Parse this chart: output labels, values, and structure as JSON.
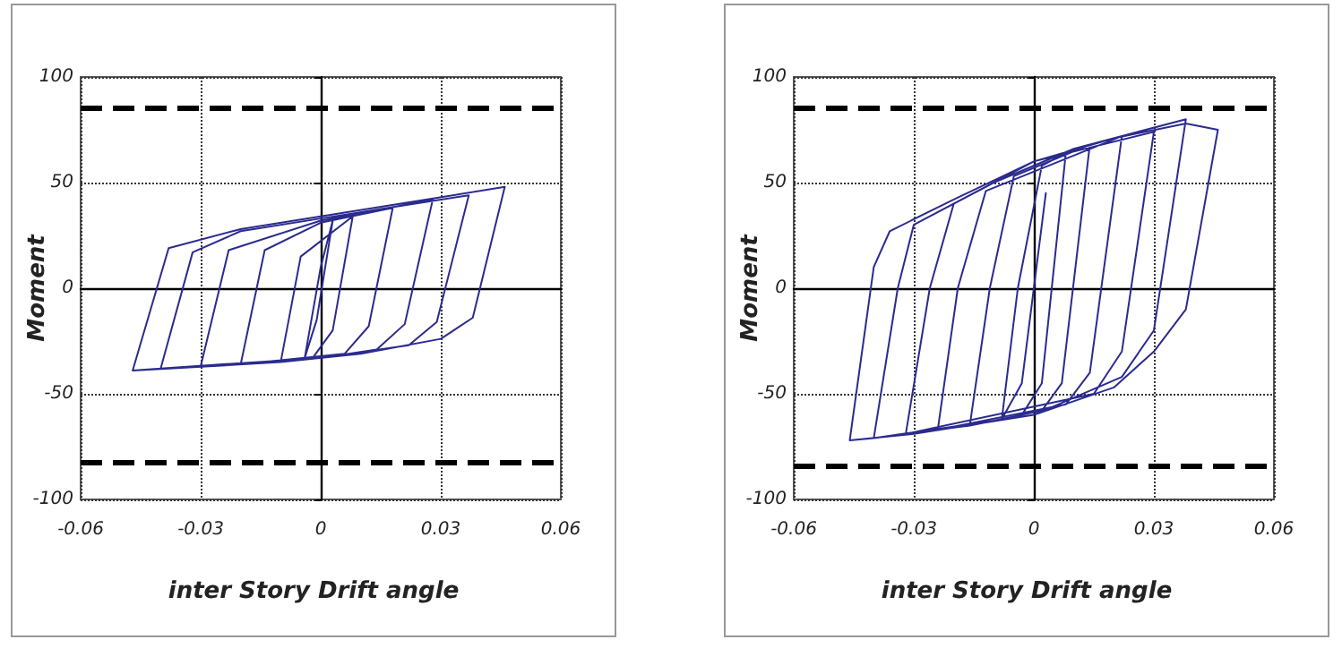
{
  "chart_data": [
    {
      "type": "line",
      "xlabel": "inter Story Drift angle",
      "ylabel": "Moment",
      "xlim": [
        -0.06,
        0.06
      ],
      "ylim": [
        -100,
        100
      ],
      "xticks": [
        -0.06,
        -0.03,
        0,
        0.03,
        0.06
      ],
      "yticks": [
        -100,
        -50,
        0,
        50,
        100
      ],
      "grid": true,
      "marker": "none",
      "line_style": "solid",
      "ref_lines": [
        {
          "axis": "y",
          "value": 85,
          "color": "#000000",
          "line_style": "dashed"
        },
        {
          "axis": "y",
          "value": -82,
          "color": "#000000",
          "line_style": "dashed"
        }
      ],
      "series": [
        {
          "color": "#2b2b8f",
          "x": [
            -0.004,
            0.0,
            0.003,
            -0.001,
            -0.004,
            -0.01,
            -0.005,
            0.008,
            0.003,
            -0.002,
            -0.01,
            -0.02,
            -0.014,
            0.0,
            0.018,
            0.012,
            0.006,
            -0.02,
            -0.03,
            -0.023,
            0.0,
            0.028,
            0.021,
            0.014,
            0.0,
            -0.03,
            -0.04,
            -0.032,
            -0.02,
            0.0,
            0.02,
            0.037,
            0.029,
            0.022,
            0.0,
            -0.04,
            -0.047,
            -0.038,
            -0.02,
            0.0,
            0.02,
            0.046,
            0.038,
            0.03,
            0.01,
            -0.01,
            -0.047
          ],
          "values": [
            -33,
            10,
            32,
            -15,
            -33,
            -35,
            15,
            34,
            -20,
            -33,
            -35,
            -36,
            18,
            31,
            38,
            -18,
            -31,
            -36,
            -37,
            18,
            32,
            42,
            -17,
            -29,
            -33,
            -37,
            -38,
            17,
            27,
            33,
            39,
            44,
            -16,
            -27,
            -33,
            -38,
            -39,
            19,
            28,
            34,
            40,
            48,
            -14,
            -24,
            -31,
            -35,
            -39
          ]
        }
      ]
    },
    {
      "type": "line",
      "xlabel": "inter Story Drift angle",
      "ylabel": "Moment",
      "xlim": [
        -0.06,
        0.06
      ],
      "ylim": [
        -100,
        100
      ],
      "xticks": [
        -0.06,
        -0.03,
        0,
        0.03,
        0.06
      ],
      "yticks": [
        -100,
        -50,
        0,
        50,
        100
      ],
      "grid": true,
      "marker": "none",
      "line_style": "solid",
      "ref_lines": [
        {
          "axis": "y",
          "value": 85,
          "color": "#000000",
          "line_style": "dashed"
        },
        {
          "axis": "y",
          "value": -84,
          "color": "#000000",
          "line_style": "dashed"
        }
      ],
      "series": [
        {
          "color": "#2b2b8f",
          "x": [
            -0.003,
            0.003,
            -0.003,
            -0.008,
            -0.004,
            0.002,
            0.008,
            0.002,
            -0.003,
            -0.008,
            -0.016,
            -0.011,
            -0.005,
            0.014,
            0.007,
            0.002,
            -0.016,
            -0.024,
            -0.019,
            -0.012,
            0.022,
            0.014,
            0.008,
            -0.024,
            -0.032,
            -0.026,
            -0.02,
            0.0,
            0.03,
            0.022,
            0.015,
            -0.032,
            -0.04,
            -0.034,
            -0.03,
            -0.01,
            0.01,
            0.038,
            0.03,
            0.022,
            0.0,
            -0.04,
            -0.046,
            -0.04,
            -0.036,
            -0.02,
            0.0,
            0.02,
            0.038,
            0.046,
            0.038,
            0.03,
            0.02,
            0.0,
            -0.03,
            -0.046
          ],
          "values": [
            -45,
            45,
            -45,
            -62,
            0,
            58,
            64,
            -45,
            -60,
            -62,
            -65,
            0,
            53,
            68,
            -45,
            -58,
            -65,
            -67,
            0,
            46,
            72,
            -40,
            -55,
            -67,
            -69,
            0,
            40,
            60,
            74,
            -30,
            -50,
            -69,
            -71,
            0,
            30,
            50,
            66,
            80,
            -20,
            -42,
            -60,
            -71,
            -72,
            10,
            27,
            42,
            60,
            71,
            78,
            75,
            -10,
            -30,
            -47,
            -60,
            -69,
            -72
          ]
        }
      ]
    }
  ]
}
